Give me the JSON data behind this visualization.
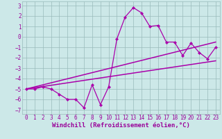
{
  "xlabel": "Windchill (Refroidissement éolien,°C)",
  "xlim": [
    -0.5,
    23.5
  ],
  "ylim": [
    -7.4,
    3.4
  ],
  "yticks": [
    3,
    2,
    1,
    0,
    -1,
    -2,
    -3,
    -4,
    -5,
    -6,
    -7
  ],
  "xticks": [
    0,
    1,
    2,
    3,
    4,
    5,
    6,
    7,
    8,
    9,
    10,
    11,
    12,
    13,
    14,
    15,
    16,
    17,
    18,
    19,
    20,
    21,
    22,
    23
  ],
  "data_x": [
    0,
    1,
    2,
    3,
    4,
    5,
    6,
    7,
    8,
    9,
    10,
    11,
    12,
    13,
    14,
    15,
    16,
    17,
    18,
    19,
    20,
    21,
    22,
    23
  ],
  "data_y": [
    -5.0,
    -5.0,
    -4.8,
    -5.0,
    -5.5,
    -6.0,
    -6.0,
    -6.8,
    -4.6,
    -6.5,
    -4.8,
    -0.2,
    1.9,
    2.8,
    2.3,
    1.0,
    1.1,
    -0.5,
    -0.5,
    -1.8,
    -0.6,
    -1.5,
    -2.1,
    -1.0
  ],
  "trend1_x": [
    0,
    23
  ],
  "trend1_y": [
    -5.0,
    -0.5
  ],
  "trend2_x": [
    0,
    23
  ],
  "trend2_y": [
    -5.0,
    -2.3
  ],
  "line_color": "#aa00aa",
  "bg_color": "#cce8e8",
  "grid_color": "#99bbbb",
  "font_color": "#990099",
  "tick_fontsize": 5.5,
  "label_fontsize": 6.5
}
